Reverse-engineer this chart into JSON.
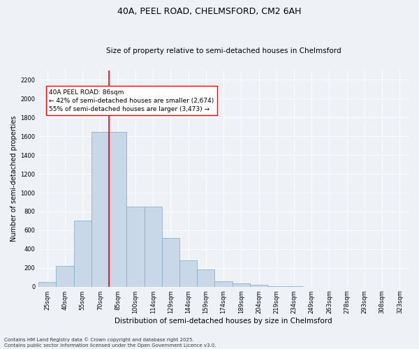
{
  "title1": "40A, PEEL ROAD, CHELMSFORD, CM2 6AH",
  "title2": "Size of property relative to semi-detached houses in Chelmsford",
  "xlabel": "Distribution of semi-detached houses by size in Chelmsford",
  "ylabel": "Number of semi-detached properties",
  "categories": [
    "25sqm",
    "40sqm",
    "55sqm",
    "70sqm",
    "85sqm",
    "100sqm",
    "114sqm",
    "129sqm",
    "144sqm",
    "159sqm",
    "174sqm",
    "189sqm",
    "204sqm",
    "219sqm",
    "234sqm",
    "249sqm",
    "263sqm",
    "278sqm",
    "293sqm",
    "308sqm",
    "323sqm"
  ],
  "bar_values": [
    50,
    220,
    700,
    1650,
    1650,
    850,
    850,
    520,
    280,
    185,
    60,
    35,
    20,
    8,
    5,
    0,
    0,
    0,
    0,
    0,
    0
  ],
  "bar_color": "#c8d8e8",
  "bar_edge_color": "#7aaac8",
  "vline_color": "red",
  "vline_pos": 3.5,
  "annotation_text": "40A PEEL ROAD: 86sqm\n← 42% of semi-detached houses are smaller (2,674)\n55% of semi-detached houses are larger (3,473) →",
  "annotation_box_color": "white",
  "annotation_box_edge": "red",
  "ylim": [
    0,
    2300
  ],
  "yticks": [
    0,
    200,
    400,
    600,
    800,
    1000,
    1200,
    1400,
    1600,
    1800,
    2000,
    2200
  ],
  "footer1": "Contains HM Land Registry data © Crown copyright and database right 2025.",
  "footer2": "Contains public sector information licensed under the Open Government Licence v3.0.",
  "bg_color": "#eef2f7",
  "plot_bg_color": "#eef2f7",
  "grid_color": "#ffffff",
  "title1_fontsize": 9,
  "title2_fontsize": 7.5,
  "ylabel_fontsize": 7,
  "xlabel_fontsize": 7.5,
  "tick_fontsize": 6,
  "annot_fontsize": 6.5,
  "footer_fontsize": 5
}
